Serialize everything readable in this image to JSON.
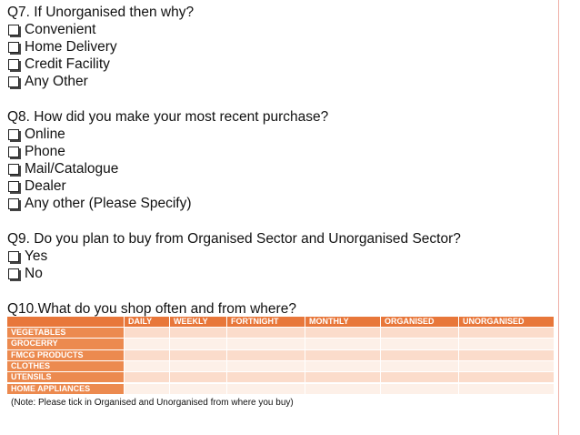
{
  "questions": [
    {
      "title": "Q7. If Unorganised then why?",
      "options": [
        "Convenient",
        "Home Delivery",
        "Credit Facility",
        "Any Other"
      ]
    },
    {
      "title": "Q8. How did you make your most recent purchase?",
      "options": [
        "Online",
        "Phone",
        "Mail/Catalogue",
        "Dealer",
        "Any other (Please Specify)"
      ]
    },
    {
      "title": "Q9. Do you plan to buy from Organised Sector and Unorganised Sector?",
      "options": [
        "Yes",
        "No"
      ]
    },
    {
      "title": "Q10.What do you shop often and from where?",
      "options": []
    }
  ],
  "table": {
    "headers": [
      "DAILY",
      "WEEKLY",
      "FORTNIGHT",
      "MONTHLY",
      "ORGANISED",
      "UNORGANISED"
    ],
    "rows": [
      "VEGETABLES",
      "GROCERRY",
      "FMCG PRODUCTS",
      "CLOTHES",
      "UTENSILS",
      "HOME APPLIANCES"
    ]
  },
  "note": "(Note: Please tick in Organised and Unorganised from where you buy)"
}
